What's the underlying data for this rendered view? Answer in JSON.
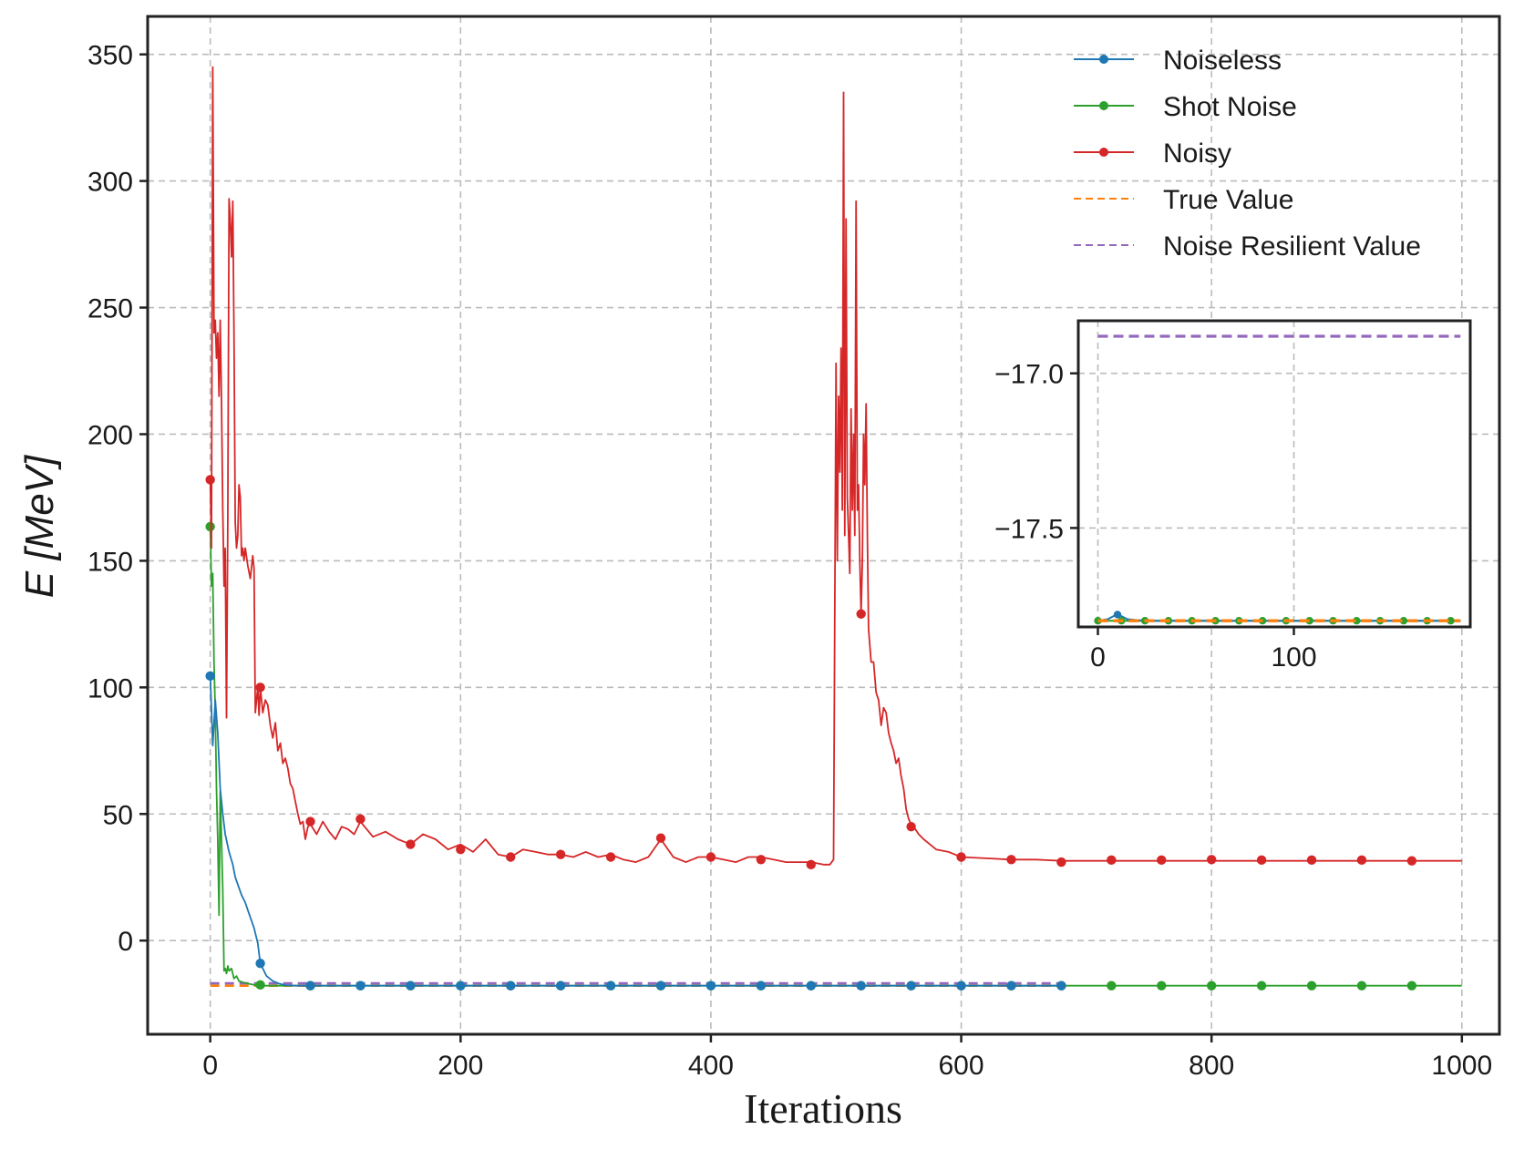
{
  "chart_data": {
    "type": "line",
    "title": "",
    "xlabel": "Iterations",
    "ylabel": "E [MeV]",
    "xlim": [
      -50,
      1030
    ],
    "ylim": [
      -37,
      365
    ],
    "xticks": [
      0,
      200,
      400,
      600,
      800,
      1000
    ],
    "yticks": [
      0,
      50,
      100,
      150,
      200,
      250,
      300,
      350
    ],
    "grid": true,
    "legend_position": "top-right",
    "colors": {
      "noiseless": "#1f77b4",
      "shot_noise": "#2ca02c",
      "noisy": "#d62728",
      "true_value": "#ff7f0e",
      "noise_resilient": "#9467bd",
      "axes": "#222222",
      "grid": "#bbbbbb"
    },
    "series": [
      {
        "name": "Noiseless",
        "color": "#1f77b4",
        "style": "solid-marker",
        "x": [
          0,
          2,
          4,
          6,
          8,
          10,
          12,
          15,
          18,
          20,
          25,
          28,
          30,
          35,
          38,
          40,
          45,
          50,
          55,
          60,
          70,
          80,
          120,
          160,
          200,
          240,
          280,
          320,
          360,
          400,
          440,
          480,
          520,
          560,
          600,
          640,
          680
        ],
        "y": [
          104.5,
          77,
          95,
          82,
          60,
          50,
          42,
          35,
          30,
          25,
          18,
          15,
          12,
          5,
          -1,
          -9,
          -14,
          -16,
          -17,
          -17.6,
          -17.8,
          -17.8,
          -17.8,
          -17.8,
          -17.8,
          -17.8,
          -17.8,
          -17.8,
          -17.8,
          -17.8,
          -17.8,
          -17.8,
          -17.8,
          -17.8,
          -17.8,
          -17.8,
          -17.8
        ],
        "marker_x": [
          0,
          40,
          80,
          120,
          160,
          200,
          240,
          280,
          320,
          360,
          400,
          440,
          480,
          520,
          560,
          600,
          640,
          680
        ],
        "marker_y": [
          104.5,
          -9,
          -17.8,
          -17.8,
          -17.8,
          -17.8,
          -17.8,
          -17.8,
          -17.8,
          -17.8,
          -17.8,
          -17.8,
          -17.8,
          -17.8,
          -17.8,
          -17.8,
          -17.8,
          -17.8
        ]
      },
      {
        "name": "Shot Noise",
        "color": "#2ca02c",
        "style": "solid-marker",
        "x": [
          0,
          1,
          2,
          3,
          4,
          5,
          6,
          7,
          8,
          9,
          10,
          11,
          12,
          13,
          14,
          15,
          17,
          19,
          21,
          23,
          26,
          30,
          35,
          40,
          50,
          60,
          80,
          1000
        ],
        "y": [
          163.5,
          140,
          145,
          110,
          90,
          60,
          40,
          10,
          59,
          40,
          20,
          -12,
          -11,
          -13,
          -10,
          -12,
          -11,
          -15,
          -14,
          -16,
          -16.5,
          -17,
          -17.5,
          -17.8,
          -17.8,
          -17.8,
          -17.8,
          -17.8
        ],
        "marker_x": [
          0,
          40,
          80,
          120,
          160,
          200,
          240,
          280,
          320,
          360,
          400,
          440,
          480,
          520,
          560,
          600,
          640,
          680,
          720,
          760,
          800,
          840,
          880,
          920,
          960
        ],
        "marker_y": [
          163.5,
          -17.5,
          -17.8,
          -17.8,
          -17.8,
          -17.8,
          -17.8,
          -17.8,
          -17.8,
          -17.8,
          -17.8,
          -17.8,
          -17.8,
          -17.8,
          -17.8,
          -17.8,
          -17.8,
          -17.8,
          -17.8,
          -17.8,
          -17.8,
          -17.8,
          -17.8,
          -17.8,
          -17.8
        ]
      },
      {
        "name": "Noisy",
        "color": "#d62728",
        "style": "solid-marker",
        "x": [
          0,
          1,
          2,
          3,
          4,
          5,
          6,
          7,
          8,
          9,
          10,
          11,
          12,
          13,
          14,
          15,
          16,
          17,
          18,
          19,
          20,
          21,
          22,
          23,
          24,
          25,
          26,
          27,
          28,
          30,
          32,
          34,
          35,
          36,
          38,
          39,
          40,
          42,
          44,
          46,
          48,
          50,
          52,
          54,
          56,
          58,
          60,
          62,
          64,
          66,
          68,
          70,
          72,
          74,
          76,
          78,
          80,
          85,
          90,
          95,
          100,
          105,
          110,
          115,
          120,
          130,
          140,
          150,
          160,
          170,
          180,
          190,
          200,
          210,
          220,
          230,
          240,
          250,
          260,
          270,
          280,
          290,
          300,
          310,
          320,
          330,
          340,
          350,
          360,
          370,
          380,
          390,
          400,
          410,
          420,
          430,
          440,
          450,
          460,
          470,
          480,
          490,
          495,
          498,
          500,
          501,
          502,
          503,
          504,
          505,
          506,
          507,
          508,
          509,
          510,
          511,
          512,
          513,
          514,
          515,
          516,
          517,
          518,
          519,
          520,
          521,
          522,
          523,
          524,
          525,
          526,
          528,
          530,
          532,
          534,
          536,
          538,
          540,
          542,
          544,
          546,
          548,
          550,
          552,
          554,
          556,
          558,
          560,
          562,
          566,
          570,
          575,
          580,
          590,
          600,
          620,
          640,
          660,
          680,
          700,
          720,
          740,
          760,
          780,
          800,
          820,
          840,
          860,
          880,
          900,
          920,
          940,
          960,
          980,
          1000
        ],
        "y": [
          182,
          155,
          345,
          240,
          245,
          230,
          240,
          215,
          245,
          213,
          170,
          140,
          155,
          88,
          165,
          293,
          285,
          270,
          292,
          240,
          165,
          155,
          160,
          180,
          175,
          152,
          155,
          150,
          155,
          148,
          143,
          152,
          147,
          90,
          100,
          89,
          100,
          90,
          95,
          93,
          85,
          80,
          86,
          75,
          78,
          70,
          72,
          68,
          62,
          60,
          55,
          50,
          46,
          47,
          40,
          45,
          46,
          42,
          47,
          43,
          40,
          45,
          44,
          42,
          47,
          41,
          43,
          40,
          38,
          42,
          40,
          36,
          38,
          35,
          40,
          34,
          33,
          36,
          35,
          34,
          34,
          33,
          35,
          33,
          34,
          32,
          31,
          33,
          40,
          33,
          31,
          33,
          33,
          32,
          31,
          33,
          33,
          32,
          31,
          31,
          31,
          30,
          30,
          32,
          228,
          150,
          215,
          185,
          234,
          170,
          335,
          160,
          285,
          175,
          160,
          145,
          210,
          170,
          200,
          160,
          292,
          170,
          180,
          150,
          129,
          150,
          200,
          180,
          212,
          160,
          123,
          110,
          110,
          98,
          95,
          85,
          92,
          90,
          82,
          78,
          75,
          70,
          72,
          65,
          60,
          52,
          48,
          46,
          45,
          42,
          40,
          38,
          36,
          35,
          33,
          32.5,
          32,
          32,
          31.5,
          31.5,
          31.5,
          31.5,
          31.5,
          31.5,
          31.5,
          31.5,
          31.5,
          31.5,
          31.5,
          31.5,
          31.5,
          31.5,
          31.5,
          31.5,
          31.5
        ],
        "marker_x": [
          0,
          40,
          80,
          120,
          160,
          200,
          240,
          280,
          320,
          360,
          400,
          440,
          480,
          520,
          560,
          600,
          640,
          680,
          720,
          760,
          800,
          840,
          880,
          920,
          960
        ],
        "marker_y": [
          182,
          100,
          47,
          48,
          38,
          36,
          33,
          34,
          33,
          40.5,
          33,
          32,
          30,
          129,
          45,
          33,
          32,
          31,
          31.8,
          31.8,
          32,
          31.8,
          31.8,
          31.8,
          31.5
        ]
      },
      {
        "name": "True Value",
        "color": "#ff7f0e",
        "style": "dashed",
        "x": [
          0,
          680
        ],
        "y": [
          -17.8,
          -17.8
        ]
      },
      {
        "name": "Noise Resilient Value",
        "color": "#9467bd",
        "style": "dashed",
        "x": [
          0,
          680
        ],
        "y": [
          -16.88,
          -16.88
        ]
      }
    ],
    "inset": {
      "xlim": [
        -10,
        190
      ],
      "ylim": [
        -17.82,
        -16.83
      ],
      "xticks": [
        0,
        100
      ],
      "yticks": [
        -17.0,
        -17.5
      ],
      "ytick_labels": [
        "−17.0",
        "−17.5"
      ],
      "grid": true,
      "noise_resilient_y": -16.88,
      "true_value_y": -17.8,
      "noiseless_x": [
        0,
        5,
        8,
        10,
        12,
        15,
        20,
        25,
        40,
        80,
        120,
        160,
        185
      ],
      "noiseless_y": [
        -17.8,
        -17.795,
        -17.785,
        -17.78,
        -17.785,
        -17.795,
        -17.798,
        -17.8,
        -17.8,
        -17.8,
        -17.8,
        -17.8,
        -17.8
      ],
      "noiseless_marker_x": [
        10
      ],
      "noiseless_marker_y": [
        -17.78
      ],
      "shot_x": [
        0,
        185
      ],
      "shot_y": [
        -17.8,
        -17.8
      ],
      "shot_marker_x": [
        0,
        12,
        24,
        36,
        48,
        60,
        72,
        84,
        96,
        108,
        120,
        132,
        144,
        156,
        168,
        180
      ],
      "shot_marker_y": [
        -17.8,
        -17.8,
        -17.8,
        -17.8,
        -17.8,
        -17.8,
        -17.8,
        -17.8,
        -17.8,
        -17.8,
        -17.8,
        -17.8,
        -17.8,
        -17.8,
        -17.8,
        -17.8
      ]
    }
  }
}
